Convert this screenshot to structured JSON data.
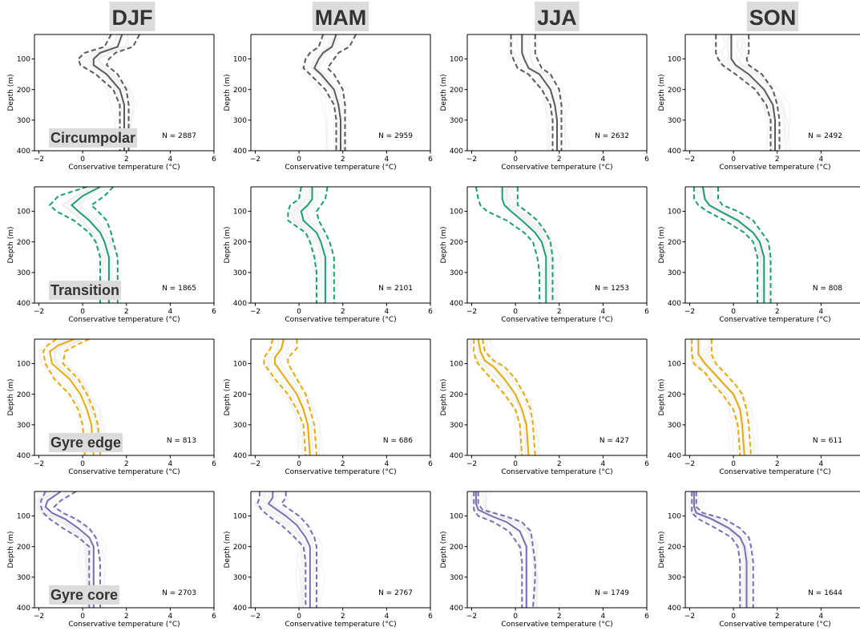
{
  "chart_data": {
    "type": "line",
    "seasons": [
      "DJF",
      "MAM",
      "JJA",
      "SON"
    ],
    "regions": [
      {
        "name": "Circumpolar",
        "color": "#5a5a5a"
      },
      {
        "name": "Transition",
        "color": "#1b9e77"
      },
      {
        "name": "Gyre edge",
        "color": "#e6ab02"
      },
      {
        "name": "Gyre core",
        "color": "#7570b3"
      }
    ],
    "xlabel": "Conservative temperature (°C)",
    "ylabel": "Depth (m)",
    "xlim": [
      -2.2,
      6
    ],
    "ylim": [
      400,
      20
    ],
    "x_ticks": [
      "−2",
      "0",
      "2",
      "4",
      "6"
    ],
    "y_ticks": [
      "100",
      "200",
      "300",
      "400"
    ],
    "background_profiles_color": "#e8e8e8",
    "panels": [
      {
        "region": "Circumpolar",
        "season": "DJF",
        "n_label": "N = 2887",
        "depth": [
          20,
          60,
          80,
          100,
          120,
          150,
          200,
          250,
          300,
          400
        ],
        "mean": [
          1.8,
          1.6,
          0.8,
          0.5,
          0.5,
          1.1,
          1.7,
          1.9,
          1.9,
          1.9
        ],
        "lower": [
          1.3,
          1.0,
          0.1,
          -0.2,
          -0.1,
          0.6,
          1.4,
          1.7,
          1.7,
          1.7
        ],
        "upper": [
          2.6,
          2.3,
          1.5,
          1.2,
          1.1,
          1.6,
          2.0,
          2.1,
          2.1,
          2.1
        ]
      },
      {
        "region": "Circumpolar",
        "season": "MAM",
        "n_label": "N = 2959",
        "depth": [
          20,
          60,
          80,
          100,
          130,
          150,
          200,
          250,
          300,
          400
        ],
        "mean": [
          1.7,
          1.5,
          1.1,
          0.9,
          0.7,
          1.0,
          1.6,
          1.8,
          1.9,
          1.9
        ],
        "lower": [
          1.1,
          0.9,
          0.5,
          0.3,
          0.2,
          0.5,
          1.2,
          1.6,
          1.7,
          1.7
        ],
        "upper": [
          2.6,
          2.3,
          1.8,
          1.6,
          1.3,
          1.6,
          2.0,
          2.1,
          2.1,
          2.1
        ]
      },
      {
        "region": "Circumpolar",
        "season": "JJA",
        "n_label": "N = 2632",
        "depth": [
          20,
          60,
          80,
          100,
          130,
          150,
          200,
          250,
          300,
          400
        ],
        "mean": [
          0.3,
          0.3,
          0.3,
          0.4,
          0.6,
          1.1,
          1.6,
          1.8,
          1.9,
          1.9
        ],
        "lower": [
          -0.2,
          -0.2,
          -0.2,
          -0.1,
          0.1,
          0.6,
          1.2,
          1.6,
          1.7,
          1.7
        ],
        "upper": [
          0.9,
          0.9,
          0.9,
          1.0,
          1.2,
          1.6,
          2.0,
          2.1,
          2.1,
          2.1
        ]
      },
      {
        "region": "Circumpolar",
        "season": "SON",
        "n_label": "N = 2492",
        "depth": [
          20,
          60,
          80,
          100,
          120,
          150,
          200,
          250,
          300,
          400
        ],
        "mean": [
          -0.1,
          -0.1,
          -0.1,
          -0.1,
          0.1,
          0.7,
          1.4,
          1.8,
          1.9,
          1.9
        ],
        "lower": [
          -0.8,
          -0.8,
          -0.8,
          -0.7,
          -0.5,
          0.1,
          1.0,
          1.5,
          1.7,
          1.7
        ],
        "upper": [
          0.7,
          0.7,
          0.7,
          0.6,
          0.7,
          1.3,
          1.8,
          2.0,
          2.1,
          2.1
        ]
      },
      {
        "region": "Transition",
        "season": "DJF",
        "n_label": "N = 1865",
        "depth": [
          20,
          50,
          80,
          100,
          130,
          170,
          200,
          250,
          300,
          400
        ],
        "mean": [
          0.8,
          0.0,
          -0.5,
          -0.2,
          0.3,
          0.8,
          1.0,
          1.2,
          1.2,
          1.2
        ],
        "lower": [
          0.2,
          -1.1,
          -1.5,
          -1.2,
          -0.4,
          0.3,
          0.6,
          0.8,
          0.8,
          0.8
        ],
        "upper": [
          1.4,
          1.0,
          0.4,
          0.7,
          1.1,
          1.3,
          1.4,
          1.6,
          1.6,
          1.6
        ]
      },
      {
        "region": "Transition",
        "season": "MAM",
        "n_label": "N = 2101",
        "depth": [
          20,
          60,
          80,
          100,
          130,
          170,
          200,
          250,
          300,
          400
        ],
        "mean": [
          0.6,
          0.6,
          0.4,
          0.1,
          0.2,
          0.8,
          1.0,
          1.2,
          1.2,
          1.2
        ],
        "lower": [
          0.1,
          0.0,
          -0.4,
          -0.5,
          -0.5,
          0.3,
          0.5,
          0.7,
          0.8,
          0.8
        ],
        "upper": [
          1.3,
          1.2,
          1.0,
          0.8,
          0.9,
          1.2,
          1.4,
          1.6,
          1.6,
          1.6
        ]
      },
      {
        "region": "Transition",
        "season": "JJA",
        "n_label": "N = 1253",
        "depth": [
          20,
          60,
          80,
          100,
          130,
          170,
          200,
          250,
          300,
          400
        ],
        "mean": [
          -0.6,
          -0.6,
          -0.5,
          -0.2,
          0.3,
          0.9,
          1.2,
          1.4,
          1.4,
          1.4
        ],
        "lower": [
          -1.8,
          -1.7,
          -1.6,
          -1.3,
          -0.4,
          0.4,
          0.8,
          1.0,
          1.1,
          1.1
        ],
        "upper": [
          0.1,
          0.1,
          0.1,
          0.5,
          1.0,
          1.4,
          1.6,
          1.7,
          1.7,
          1.7
        ]
      },
      {
        "region": "Transition",
        "season": "SON",
        "n_label": "N = 808",
        "depth": [
          20,
          60,
          80,
          100,
          130,
          170,
          200,
          250,
          300,
          400
        ],
        "mean": [
          -1.4,
          -1.3,
          -1.1,
          -0.6,
          0.2,
          0.9,
          1.2,
          1.4,
          1.4,
          1.4
        ],
        "lower": [
          -1.8,
          -1.8,
          -1.6,
          -1.2,
          -0.4,
          0.5,
          0.9,
          1.1,
          1.1,
          1.1
        ],
        "upper": [
          -0.7,
          -0.7,
          -0.5,
          0.2,
          0.9,
          1.3,
          1.6,
          1.7,
          1.7,
          1.7
        ]
      },
      {
        "region": "Gyre edge",
        "season": "DJF",
        "n_label": "N = 813",
        "depth": [
          20,
          40,
          60,
          100,
          150,
          200,
          250,
          300,
          400
        ],
        "mean": [
          -0.4,
          -1.1,
          -1.5,
          -1.4,
          -0.6,
          -0.1,
          0.2,
          0.4,
          0.5
        ],
        "lower": [
          -1.2,
          -1.6,
          -1.8,
          -1.7,
          -1.3,
          -0.6,
          -0.2,
          0.0,
          0.1
        ],
        "upper": [
          0.3,
          -0.3,
          -0.8,
          -0.9,
          -0.2,
          0.2,
          0.5,
          0.7,
          0.8
        ]
      },
      {
        "region": "Gyre edge",
        "season": "MAM",
        "n_label": "N = 686",
        "depth": [
          20,
          50,
          80,
          100,
          150,
          200,
          250,
          300,
          400
        ],
        "mean": [
          -0.7,
          -0.8,
          -1.1,
          -1.1,
          -0.6,
          -0.1,
          0.2,
          0.4,
          0.5
        ],
        "lower": [
          -1.2,
          -1.3,
          -1.6,
          -1.6,
          -1.1,
          -0.5,
          -0.1,
          0.2,
          0.3
        ],
        "upper": [
          -0.1,
          -0.1,
          -0.5,
          -0.5,
          -0.1,
          0.3,
          0.5,
          0.7,
          0.8
        ]
      },
      {
        "region": "Gyre edge",
        "season": "JJA",
        "n_label": "N = 427",
        "depth": [
          20,
          60,
          90,
          110,
          150,
          200,
          250,
          300,
          400
        ],
        "mean": [
          -1.7,
          -1.6,
          -1.4,
          -1.0,
          -0.5,
          0.0,
          0.3,
          0.5,
          0.6
        ],
        "lower": [
          -1.9,
          -1.9,
          -1.8,
          -1.6,
          -1.1,
          -0.5,
          0.0,
          0.2,
          0.3
        ],
        "upper": [
          -1.5,
          -1.4,
          -1.0,
          -0.5,
          0.0,
          0.4,
          0.7,
          0.8,
          0.9
        ]
      },
      {
        "region": "Gyre edge",
        "season": "SON",
        "n_label": "N = 611",
        "depth": [
          20,
          70,
          100,
          130,
          170,
          200,
          250,
          300,
          400
        ],
        "mean": [
          -1.6,
          -1.6,
          -1.3,
          -0.9,
          -0.4,
          0.0,
          0.3,
          0.4,
          0.5
        ],
        "lower": [
          -1.9,
          -1.9,
          -1.8,
          -1.3,
          -0.9,
          -0.5,
          0.0,
          0.2,
          0.3
        ],
        "upper": [
          -1.0,
          -1.0,
          -0.8,
          -0.4,
          0.1,
          0.4,
          0.6,
          0.7,
          0.8
        ]
      },
      {
        "region": "Gyre core",
        "season": "DJF",
        "n_label": "N = 2703",
        "depth": [
          20,
          50,
          70,
          90,
          110,
          140,
          170,
          200,
          250,
          300,
          400
        ],
        "mean": [
          -1.0,
          -1.6,
          -1.7,
          -1.4,
          -0.8,
          -0.2,
          0.3,
          0.5,
          0.5,
          0.5,
          0.5
        ],
        "lower": [
          -1.7,
          -1.9,
          -1.9,
          -1.8,
          -1.5,
          -0.9,
          -0.2,
          0.3,
          0.3,
          0.3,
          0.3
        ],
        "upper": [
          -0.3,
          -1.0,
          -1.3,
          -0.9,
          -0.3,
          0.3,
          0.6,
          0.7,
          0.8,
          0.8,
          0.8
        ]
      },
      {
        "region": "Gyre core",
        "season": "MAM",
        "n_label": "N = 2767",
        "depth": [
          20,
          40,
          60,
          80,
          100,
          130,
          170,
          200,
          250,
          300,
          400
        ],
        "mean": [
          -1.2,
          -1.2,
          -1.4,
          -1.0,
          -0.6,
          -0.1,
          0.3,
          0.5,
          0.5,
          0.5,
          0.5
        ],
        "lower": [
          -1.8,
          -1.8,
          -1.9,
          -1.7,
          -1.4,
          -0.8,
          -0.2,
          0.2,
          0.3,
          0.3,
          0.3
        ],
        "upper": [
          -0.6,
          -0.6,
          -0.8,
          -0.4,
          0.0,
          0.4,
          0.7,
          0.8,
          0.8,
          0.8,
          0.8
        ]
      },
      {
        "region": "Gyre core",
        "season": "JJA",
        "n_label": "N = 1749",
        "depth": [
          20,
          60,
          80,
          100,
          120,
          150,
          200,
          250,
          300,
          400
        ],
        "mean": [
          -1.8,
          -1.8,
          -1.7,
          -1.1,
          -0.4,
          0.2,
          0.5,
          0.5,
          0.5,
          0.5
        ],
        "lower": [
          -1.9,
          -1.9,
          -1.9,
          -1.7,
          -1.0,
          -0.3,
          0.2,
          0.3,
          0.3,
          0.3
        ],
        "upper": [
          -1.7,
          -1.7,
          -1.5,
          -0.5,
          0.3,
          0.7,
          0.8,
          0.9,
          0.9,
          0.8
        ]
      },
      {
        "region": "Gyre core",
        "season": "SON",
        "n_label": "N = 1644",
        "depth": [
          20,
          70,
          90,
          110,
          140,
          170,
          200,
          250,
          300,
          400
        ],
        "mean": [
          -1.8,
          -1.8,
          -1.7,
          -1.0,
          -0.2,
          0.3,
          0.5,
          0.6,
          0.6,
          0.6
        ],
        "lower": [
          -1.9,
          -1.9,
          -1.9,
          -1.6,
          -0.8,
          -0.1,
          0.2,
          0.3,
          0.3,
          0.3
        ],
        "upper": [
          -1.7,
          -1.7,
          -1.4,
          -0.4,
          0.3,
          0.7,
          0.8,
          0.9,
          0.9,
          0.9
        ]
      }
    ]
  }
}
